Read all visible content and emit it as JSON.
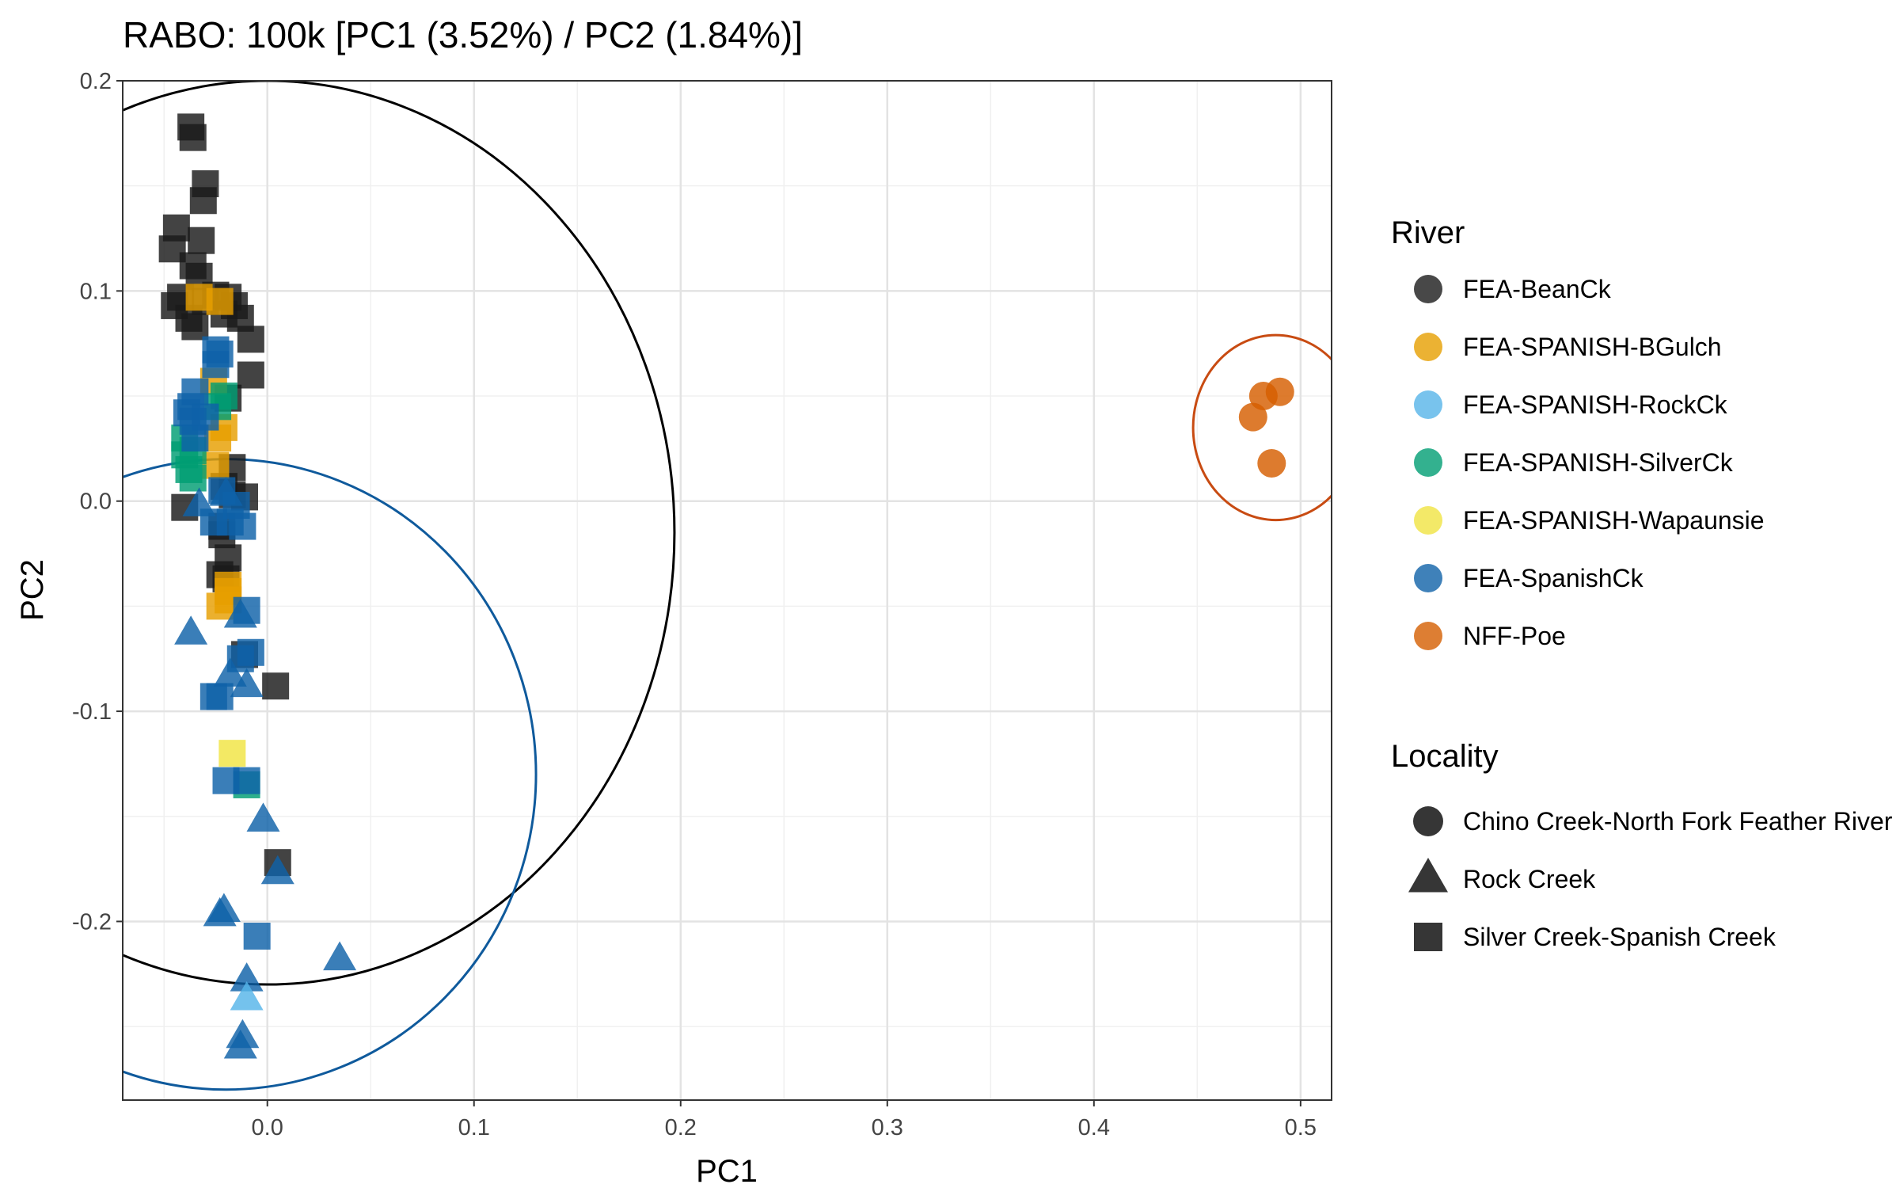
{
  "chart_data": {
    "type": "scatter",
    "title": "RABO: 100k [PC1 (3.52%) / PC2 (1.84%)]",
    "xlabel": "PC1",
    "ylabel": "PC2",
    "xlim": [
      -0.07,
      0.515
    ],
    "ylim": [
      -0.285,
      0.2
    ],
    "xticks": [
      {
        "value": 0.0,
        "label": "0.0"
      },
      {
        "value": 0.1,
        "label": "0.1"
      },
      {
        "value": 0.2,
        "label": "0.2"
      },
      {
        "value": 0.3,
        "label": "0.3"
      },
      {
        "value": 0.4,
        "label": "0.4"
      },
      {
        "value": 0.5,
        "label": "0.5"
      }
    ],
    "yticks": [
      {
        "value": 0.2,
        "label": "0.2"
      },
      {
        "value": 0.1,
        "label": "0.1"
      },
      {
        "value": 0.0,
        "label": "0.0"
      },
      {
        "value": -0.1,
        "label": "-0.1"
      },
      {
        "value": -0.2,
        "label": "-0.2"
      }
    ],
    "grid": true,
    "legend_position": "right",
    "legends": {
      "river": {
        "title": "River",
        "items": [
          {
            "label": "FEA-BeanCk",
            "color": "#1a1a1a"
          },
          {
            "label": "FEA-SPANISH-BGulch",
            "color": "#E69F00"
          },
          {
            "label": "FEA-SPANISH-RockCk",
            "color": "#56B4E9"
          },
          {
            "label": "FEA-SPANISH-SilverCk",
            "color": "#009E73"
          },
          {
            "label": "FEA-SPANISH-Wapaunsie",
            "color": "#F0E442"
          },
          {
            "label": "FEA-SpanishCk",
            "color": "#0F62A8"
          },
          {
            "label": "NFF-Poe",
            "color": "#D55E00"
          }
        ]
      },
      "locality": {
        "title": "Locality",
        "items": [
          {
            "label": "Chino Creek-North Fork Feather River",
            "shape": "circle"
          },
          {
            "label": "Rock Creek",
            "shape": "triangle"
          },
          {
            "label": "Silver Creek-Spanish Creek",
            "shape": "square"
          }
        ]
      }
    },
    "ellipses": [
      {
        "group": "FEA-BeanCk",
        "center": [
          0.0,
          -0.015
        ],
        "radius_x": 0.197,
        "radius_y": 0.215,
        "color": "#000000"
      },
      {
        "group": "FEA-SpanishCk",
        "center": [
          -0.02,
          -0.13
        ],
        "radius_x": 0.15,
        "radius_y": 0.15,
        "color": "#0F5A9C"
      },
      {
        "group": "NFF-Poe",
        "center": [
          0.488,
          0.035
        ],
        "radius_x": 0.04,
        "radius_y": 0.044,
        "color": "#C84B12"
      }
    ],
    "series": [
      {
        "river": "FEA-BeanCk",
        "locality": "Silver Creek-Spanish Creek",
        "shape": "square",
        "points": [
          [
            -0.037,
            0.178
          ],
          [
            -0.036,
            0.173
          ],
          [
            -0.03,
            0.151
          ],
          [
            -0.031,
            0.143
          ],
          [
            -0.044,
            0.13
          ],
          [
            -0.046,
            0.12
          ],
          [
            -0.032,
            0.124
          ],
          [
            -0.036,
            0.112
          ],
          [
            -0.033,
            0.107
          ],
          [
            -0.042,
            0.097
          ],
          [
            -0.045,
            0.093
          ],
          [
            -0.038,
            0.087
          ],
          [
            -0.03,
            0.095
          ],
          [
            -0.025,
            0.098
          ],
          [
            -0.019,
            0.097
          ],
          [
            -0.016,
            0.093
          ],
          [
            -0.013,
            0.087
          ],
          [
            -0.021,
            0.089
          ],
          [
            -0.035,
            0.083
          ],
          [
            -0.008,
            0.077
          ],
          [
            -0.008,
            0.06
          ],
          [
            -0.019,
            0.049
          ],
          [
            -0.017,
            0.016
          ],
          [
            -0.021,
            0.007
          ],
          [
            -0.017,
            0.003
          ],
          [
            -0.011,
            0.002
          ],
          [
            -0.04,
            -0.003
          ],
          [
            -0.022,
            -0.012
          ],
          [
            -0.022,
            -0.016
          ],
          [
            -0.019,
            -0.027
          ],
          [
            -0.02,
            -0.037
          ],
          [
            -0.023,
            -0.035
          ],
          [
            -0.011,
            -0.073
          ],
          [
            0.004,
            -0.088
          ],
          [
            0.005,
            -0.172
          ]
        ]
      },
      {
        "river": "FEA-SPANISH-BGulch",
        "locality": "Silver Creek-Spanish Creek",
        "shape": "square",
        "points": [
          [
            -0.033,
            0.097
          ],
          [
            -0.023,
            0.095
          ],
          [
            -0.026,
            0.057
          ],
          [
            -0.024,
            0.03
          ],
          [
            -0.021,
            0.035
          ],
          [
            -0.025,
            0.017
          ],
          [
            -0.019,
            -0.04
          ],
          [
            -0.023,
            -0.05
          ],
          [
            -0.019,
            -0.043
          ],
          [
            -0.019,
            -0.047
          ]
        ]
      },
      {
        "river": "FEA-SPANISH-SilverCk",
        "locality": "Silver Creek-Spanish Creek",
        "shape": "square",
        "points": [
          [
            -0.024,
            0.045
          ],
          [
            -0.021,
            0.05
          ],
          [
            -0.04,
            0.03
          ],
          [
            -0.04,
            0.022
          ],
          [
            -0.038,
            0.015
          ],
          [
            -0.036,
            0.011
          ],
          [
            -0.036,
            0.024
          ],
          [
            -0.01,
            -0.135
          ]
        ]
      },
      {
        "river": "FEA-SPANISH-Wapaunsie",
        "locality": "Silver Creek-Spanish Creek",
        "shape": "square",
        "points": [
          [
            -0.017,
            -0.12
          ]
        ]
      },
      {
        "river": "FEA-SpanishCk",
        "locality": "Silver Creek-Spanish Creek",
        "shape": "square",
        "points": [
          [
            -0.025,
            0.072
          ],
          [
            -0.025,
            0.065
          ],
          [
            -0.023,
            0.07
          ],
          [
            -0.035,
            0.052
          ],
          [
            -0.037,
            0.045
          ],
          [
            -0.039,
            0.042
          ],
          [
            -0.036,
            0.038
          ],
          [
            -0.03,
            0.04
          ],
          [
            -0.035,
            0.03
          ],
          [
            -0.022,
            0.005
          ],
          [
            -0.015,
            -0.002
          ],
          [
            -0.018,
            -0.01
          ],
          [
            -0.026,
            -0.01
          ],
          [
            -0.012,
            -0.012
          ],
          [
            -0.01,
            -0.052
          ],
          [
            -0.008,
            -0.072
          ],
          [
            -0.013,
            -0.075
          ],
          [
            -0.026,
            -0.093
          ],
          [
            -0.023,
            -0.093
          ],
          [
            -0.02,
            -0.133
          ],
          [
            -0.01,
            -0.133
          ],
          [
            -0.005,
            -0.207
          ]
        ]
      },
      {
        "river": "FEA-SpanishCk",
        "locality": "Rock Creek",
        "shape": "triangle",
        "points": [
          [
            -0.033,
            -0.002
          ],
          [
            -0.02,
            0.003
          ],
          [
            -0.013,
            -0.055
          ],
          [
            -0.037,
            -0.063
          ],
          [
            -0.018,
            -0.083
          ],
          [
            -0.01,
            -0.088
          ],
          [
            -0.002,
            -0.152
          ],
          [
            0.005,
            -0.177
          ],
          [
            -0.021,
            -0.195
          ],
          [
            -0.023,
            -0.197
          ],
          [
            0.035,
            -0.218
          ],
          [
            -0.01,
            -0.228
          ],
          [
            -0.012,
            -0.255
          ],
          [
            -0.013,
            -0.26
          ]
        ]
      },
      {
        "river": "FEA-SPANISH-RockCk",
        "locality": "Rock Creek",
        "shape": "triangle",
        "points": [
          [
            -0.01,
            -0.237
          ]
        ]
      },
      {
        "river": "NFF-Poe",
        "locality": "Chino Creek-North Fork Feather River",
        "shape": "circle",
        "points": [
          [
            0.49,
            0.052
          ],
          [
            0.482,
            0.05
          ],
          [
            0.477,
            0.04
          ],
          [
            0.486,
            0.018
          ]
        ]
      }
    ]
  }
}
